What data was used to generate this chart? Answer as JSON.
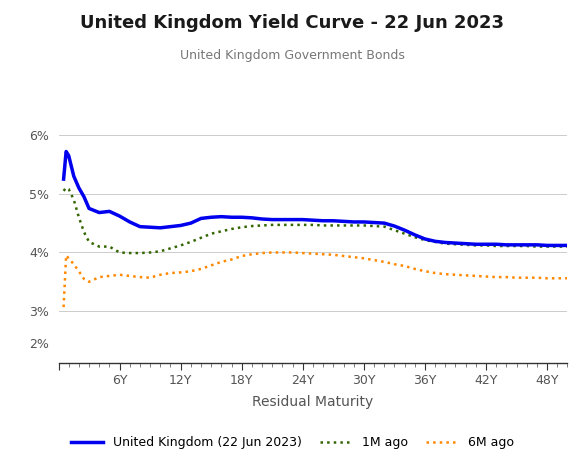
{
  "title": "United Kingdom Yield Curve - 22 Jun 2023",
  "subtitle": "United Kingdom Government Bonds",
  "xlabel": "Residual Maturity",
  "title_color": "#1a1a1a",
  "subtitle_color": "#777777",
  "background_color": "#ffffff",
  "grid_color": "#cccccc",
  "line_uk": {
    "color": "#0000ee",
    "linewidth": 2.5,
    "linestyle": "solid",
    "label": "United Kingdom (22 Jun 2023)"
  },
  "line_1m": {
    "color": "#336600",
    "linewidth": 1.8,
    "linestyle": "dotted",
    "label": "1M ago"
  },
  "line_6m": {
    "color": "#ff8800",
    "linewidth": 1.8,
    "linestyle": "dotted",
    "label": "6M ago"
  },
  "x_uk": [
    0.5,
    0.75,
    1,
    1.5,
    2,
    2.5,
    3,
    4,
    5,
    6,
    7,
    8,
    9,
    10,
    11,
    12,
    13,
    14,
    15,
    16,
    17,
    18,
    19,
    20,
    21,
    22,
    23,
    24,
    25,
    26,
    27,
    28,
    29,
    30,
    31,
    32,
    33,
    34,
    35,
    36,
    37,
    38,
    39,
    40,
    41,
    42,
    43,
    44,
    45,
    46,
    47,
    48,
    49,
    50
  ],
  "y_uk": [
    5.25,
    5.72,
    5.65,
    5.3,
    5.1,
    4.95,
    4.75,
    4.68,
    4.7,
    4.62,
    4.52,
    4.44,
    4.43,
    4.42,
    4.44,
    4.46,
    4.5,
    4.58,
    4.6,
    4.61,
    4.6,
    4.6,
    4.59,
    4.57,
    4.56,
    4.56,
    4.56,
    4.56,
    4.55,
    4.54,
    4.54,
    4.53,
    4.52,
    4.52,
    4.51,
    4.5,
    4.45,
    4.38,
    4.3,
    4.23,
    4.19,
    4.17,
    4.16,
    4.15,
    4.14,
    4.14,
    4.14,
    4.13,
    4.13,
    4.13,
    4.13,
    4.12,
    4.12,
    4.12
  ],
  "x_1m": [
    0.5,
    0.75,
    1,
    1.5,
    2,
    2.5,
    3,
    4,
    5,
    6,
    7,
    8,
    9,
    10,
    11,
    12,
    13,
    14,
    15,
    16,
    17,
    18,
    19,
    20,
    21,
    22,
    23,
    24,
    25,
    26,
    27,
    28,
    29,
    30,
    31,
    32,
    33,
    34,
    35,
    36,
    37,
    38,
    39,
    40,
    41,
    42,
    43,
    44,
    45,
    46,
    47,
    48,
    49,
    50
  ],
  "y_1m": [
    5.05,
    5.1,
    5.08,
    4.9,
    4.6,
    4.35,
    4.18,
    4.1,
    4.1,
    4.0,
    3.99,
    3.99,
    4.0,
    4.02,
    4.07,
    4.12,
    4.18,
    4.25,
    4.32,
    4.36,
    4.4,
    4.43,
    4.45,
    4.46,
    4.47,
    4.47,
    4.47,
    4.47,
    4.47,
    4.46,
    4.46,
    4.46,
    4.46,
    4.46,
    4.45,
    4.44,
    4.38,
    4.32,
    4.26,
    4.21,
    4.18,
    4.15,
    4.14,
    4.13,
    4.12,
    4.12,
    4.11,
    4.11,
    4.11,
    4.11,
    4.1,
    4.1,
    4.1,
    4.1
  ],
  "x_6m": [
    0.5,
    0.75,
    1,
    1.5,
    2,
    2.5,
    3,
    4,
    5,
    6,
    7,
    8,
    9,
    10,
    11,
    12,
    13,
    14,
    15,
    16,
    17,
    18,
    19,
    20,
    21,
    22,
    23,
    24,
    25,
    26,
    27,
    28,
    29,
    30,
    31,
    32,
    33,
    34,
    35,
    36,
    37,
    38,
    39,
    40,
    41,
    42,
    43,
    44,
    45,
    46,
    47,
    48,
    49,
    50
  ],
  "y_6m": [
    3.07,
    3.95,
    3.9,
    3.8,
    3.68,
    3.55,
    3.5,
    3.58,
    3.6,
    3.62,
    3.6,
    3.58,
    3.57,
    3.62,
    3.65,
    3.66,
    3.68,
    3.72,
    3.78,
    3.84,
    3.88,
    3.94,
    3.97,
    3.99,
    4.0,
    4.0,
    4.0,
    3.99,
    3.98,
    3.97,
    3.96,
    3.94,
    3.92,
    3.9,
    3.87,
    3.84,
    3.8,
    3.77,
    3.72,
    3.68,
    3.65,
    3.63,
    3.62,
    3.61,
    3.6,
    3.59,
    3.58,
    3.58,
    3.57,
    3.57,
    3.57,
    3.56,
    3.56,
    3.56
  ]
}
